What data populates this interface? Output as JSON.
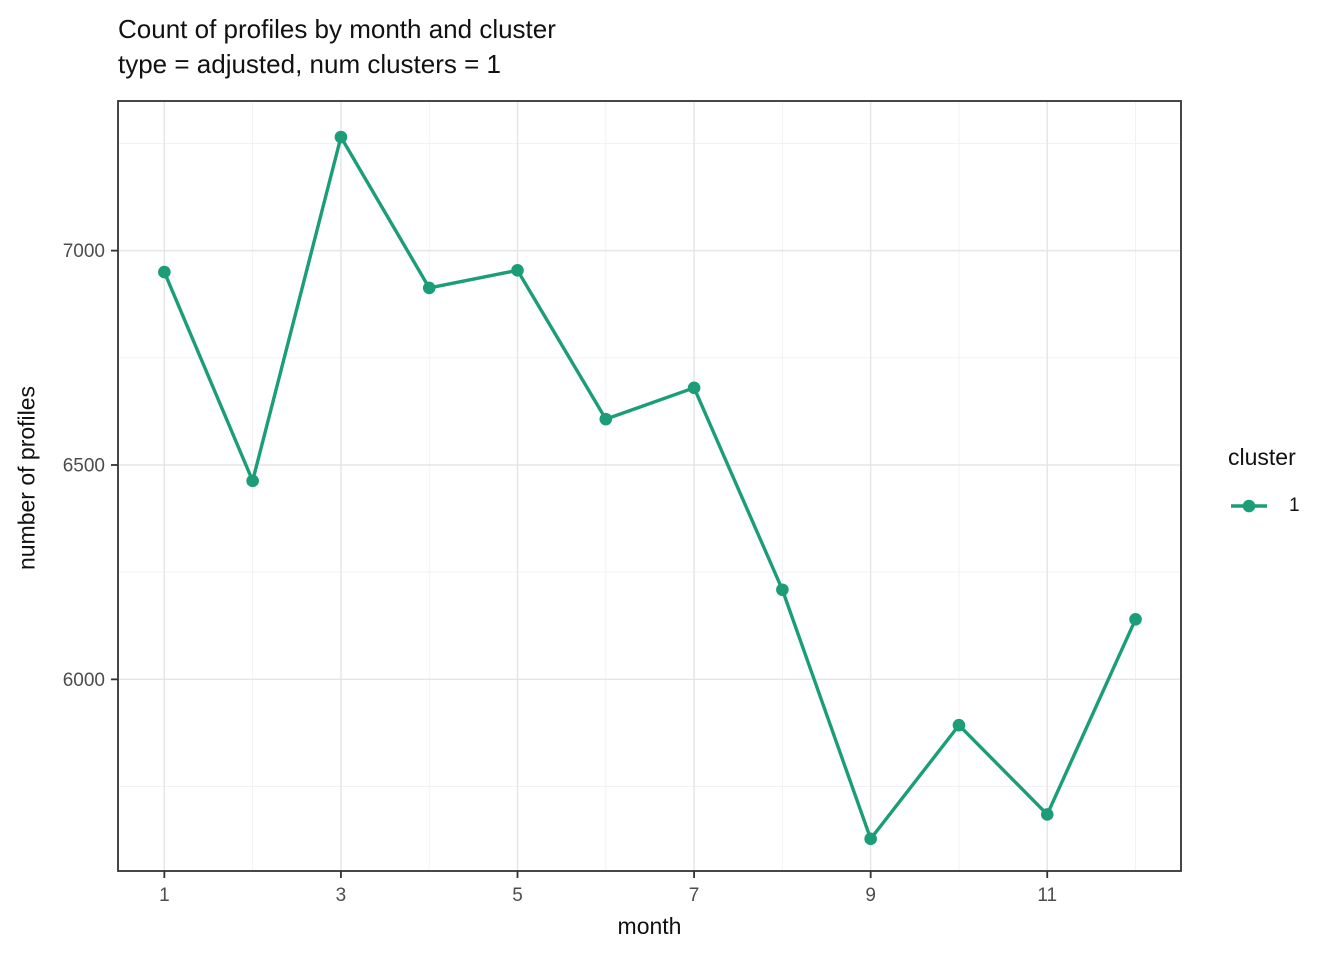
{
  "title": "Count of profiles by month and cluster",
  "subtitle": "type = adjusted, num clusters = 1",
  "colors": {
    "series": "#1B9E77",
    "grid_major": "#E5E5E5",
    "grid_minor": "#F2F2F2",
    "panel_border": "#333333",
    "tick_mark": "#333333",
    "tick_label": "#4D4D4D",
    "text": "#111111"
  },
  "legend": {
    "title": "cluster",
    "items": [
      {
        "label": "1",
        "color": "#1B9E77"
      }
    ]
  },
  "chart_data": {
    "type": "line",
    "title": "Count of profiles by month and cluster",
    "subtitle": "type = adjusted, num clusters = 1",
    "xlabel": "month",
    "ylabel": "number of profiles",
    "x": [
      1,
      2,
      3,
      4,
      5,
      6,
      7,
      8,
      9,
      10,
      11,
      12
    ],
    "series": [
      {
        "name": "1",
        "color": "#1B9E77",
        "values": [
          6950,
          6463,
          7265,
          6913,
          6954,
          6607,
          6680,
          6209,
          5628,
          5893,
          5685,
          6140
        ]
      }
    ],
    "x_ticks": [
      1,
      3,
      5,
      7,
      9,
      11
    ],
    "x_minor_ticks": [
      2,
      4,
      6,
      8,
      10,
      12
    ],
    "y_ticks": [
      6000,
      6500,
      7000
    ],
    "y_minor_ticks": [
      5750,
      6250,
      6750,
      7250
    ],
    "xlim": [
      0.475,
      12.515
    ],
    "ylim": [
      5553,
      7349
    ],
    "grid": true,
    "legend_position": "right",
    "legend_title": "cluster",
    "marker": "circle"
  }
}
